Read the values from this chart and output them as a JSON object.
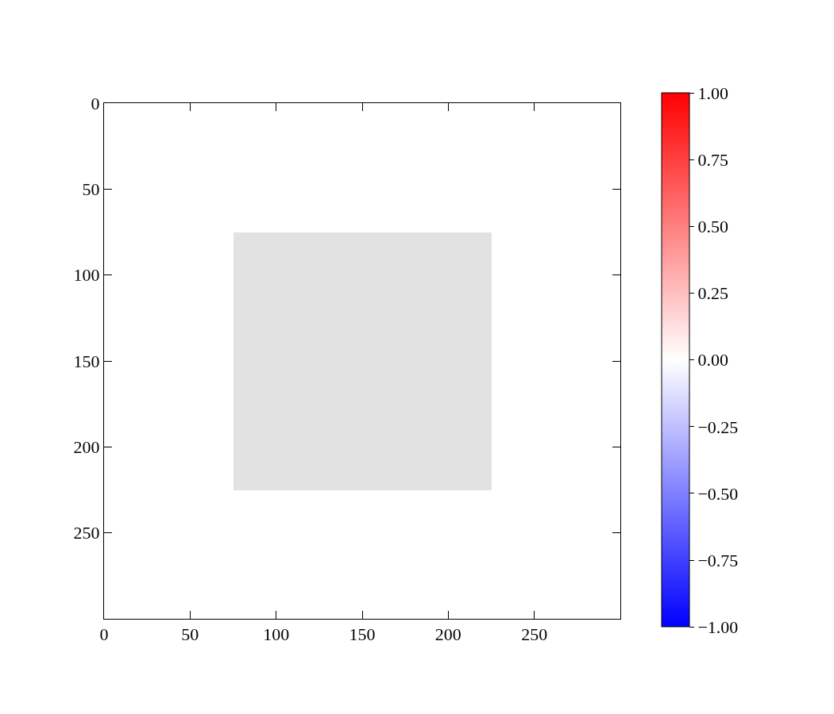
{
  "chart_data": {
    "type": "heatmap",
    "x": [
      37.5,
      112.5,
      187.5,
      262.5
    ],
    "y": [
      37.5,
      112.5,
      187.5,
      262.5
    ],
    "cells": [
      [
        0,
        0,
        0,
        0
      ],
      [
        0,
        null,
        null,
        0
      ],
      [
        0,
        null,
        null,
        0
      ],
      [
        0,
        0,
        0,
        0
      ]
    ],
    "colors": [
      "#0000ff",
      "#ffffff",
      "#ff0000"
    ],
    "color": "#e2e2e2",
    "xlim": [
      0,
      300
    ],
    "ylim": [
      300,
      0
    ],
    "xticks": [
      0,
      50,
      100,
      150,
      200,
      250
    ],
    "yticks": [
      0,
      50,
      100,
      150,
      200,
      250
    ],
    "clim": [
      -1,
      1
    ],
    "cticks": [
      {
        "value": -1,
        "label": "−1.00"
      },
      {
        "value": -0.75,
        "label": "−0.75"
      },
      {
        "value": -0.5,
        "label": "−0.50"
      },
      {
        "value": -0.25,
        "label": "−0.25"
      },
      {
        "value": 0,
        "label": "0.00"
      },
      {
        "value": 0.25,
        "label": "0.25"
      },
      {
        "value": 0.5,
        "label": "0.50"
      },
      {
        "value": 0.75,
        "label": "0.75"
      },
      {
        "value": 1,
        "label": "1.00"
      }
    ],
    "grid": false
  }
}
